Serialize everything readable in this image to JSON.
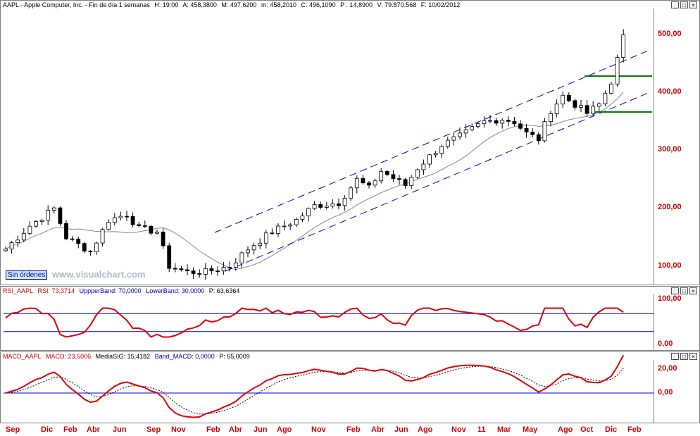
{
  "title_bar": {
    "symbol": "AAPL - Apple Computer, Inc. - Fin de día 1 semanas",
    "h": "H: 19:00",
    "a": "A: 458,3800",
    "m": "M: 497,6200",
    "mm": "m: 458,2010",
    "c": "C: 496,1090",
    "p": "P : 14,8900",
    "v": "V: 79.870.568",
    "f": "F: 10/02/2012"
  },
  "price_axis": [
    "500,00",
    "400,00",
    "300,00",
    "200,00",
    "100,00"
  ],
  "status_button": "Sin órdenes",
  "watermark": "www.visualchart.com",
  "rsi": {
    "label": "RSI_AAPL",
    "value": "RSI: 73,3714",
    "upper": "UppperBand: 70,0000",
    "lower": "LowerBand: 30,0000",
    "p": "P: 63,6364",
    "axis": [
      "100,00",
      "0,00"
    ]
  },
  "macd": {
    "label": "MACD_AAPL",
    "value": "MACD: 23,5006",
    "signal": "MediaSIG: 15,4182",
    "band": "Band_MACD: 0,0000",
    "p": "P: 65,0009",
    "axis": [
      "20,00",
      "0,00"
    ]
  },
  "x_labels": [
    "Sep",
    "Dic",
    "Feb",
    "Abr",
    "Jun",
    "Sep",
    "Nov",
    "Feb",
    "Abr",
    "Jun",
    "Ago",
    "Nov",
    "Feb",
    "Abr",
    "Jun",
    "Ago",
    "Nov",
    "11",
    "Mar",
    "May",
    "Ago",
    "Oct",
    "Dic",
    "Feb"
  ],
  "window_controls": [
    "_",
    "□",
    "×"
  ],
  "colors": {
    "axis_text": "#cc0000",
    "channel": "#0000cc",
    "support": "#008000",
    "indicator": "#dd0000"
  },
  "chart_data": {
    "type": "candlestick",
    "price_anchors": [
      [
        0,
        130
      ],
      [
        4,
        170
      ],
      [
        8,
        200
      ],
      [
        10,
        150
      ],
      [
        14,
        125
      ],
      [
        17,
        180
      ],
      [
        20,
        190
      ],
      [
        22,
        165
      ],
      [
        25,
        160
      ],
      [
        27,
        100
      ],
      [
        30,
        90
      ],
      [
        33,
        90
      ],
      [
        37,
        100
      ],
      [
        40,
        130
      ],
      [
        44,
        160
      ],
      [
        48,
        180
      ],
      [
        51,
        205
      ],
      [
        55,
        210
      ],
      [
        58,
        250
      ],
      [
        60,
        235
      ],
      [
        62,
        265
      ],
      [
        66,
        240
      ],
      [
        68,
        270
      ],
      [
        72,
        310
      ],
      [
        75,
        325
      ],
      [
        79,
        350
      ],
      [
        82,
        355
      ],
      [
        84,
        350
      ],
      [
        86,
        330
      ],
      [
        88,
        320
      ],
      [
        90,
        370
      ],
      [
        92,
        395
      ],
      [
        94,
        380
      ],
      [
        96,
        365
      ],
      [
        98,
        380
      ],
      [
        100,
        420
      ],
      [
        102,
        496
      ]
    ],
    "rsi_band_upper": 70,
    "rsi_band_lower": 30,
    "macd_zero": 0
  }
}
